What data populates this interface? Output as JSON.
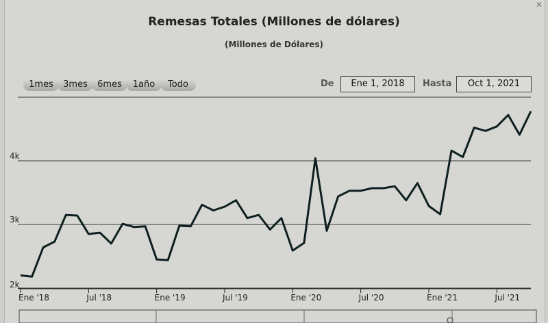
{
  "chart_data": {
    "type": "line",
    "title": "Remesas Totales (Millones de dólares)",
    "subtitle": "(Millones de Dólares)",
    "xlabel": "",
    "ylabel": "",
    "ylim": [
      2000,
      5000
    ],
    "yticks": [
      {
        "value": 2000,
        "label": "2k"
      },
      {
        "value": 3000,
        "label": "3k"
      },
      {
        "value": 4000,
        "label": "4k"
      }
    ],
    "xticks": [
      {
        "value": 0,
        "label": "Ene '18"
      },
      {
        "value": 6,
        "label": "Jul '18"
      },
      {
        "value": 12,
        "label": "Ene '19"
      },
      {
        "value": 18,
        "label": "Jul '19"
      },
      {
        "value": 24,
        "label": "Ene '20"
      },
      {
        "value": 30,
        "label": "Jul '20"
      },
      {
        "value": 36,
        "label": "Ene '21"
      },
      {
        "value": 42,
        "label": "Jul '21"
      }
    ],
    "x_dates": [
      "Jan 2018",
      "Feb 2018",
      "Mar 2018",
      "Apr 2018",
      "May 2018",
      "Jun 2018",
      "Jul 2018",
      "Aug 2018",
      "Sep 2018",
      "Oct 2018",
      "Nov 2018",
      "Dec 2018",
      "Jan 2019",
      "Feb 2019",
      "Mar 2019",
      "Apr 2019",
      "May 2019",
      "Jun 2019",
      "Jul 2019",
      "Aug 2019",
      "Sep 2019",
      "Oct 2019",
      "Nov 2019",
      "Dec 2019",
      "Jan 2020",
      "Feb 2020",
      "Mar 2020",
      "Apr 2020",
      "May 2020",
      "Jun 2020",
      "Jul 2020",
      "Aug 2020",
      "Sep 2020",
      "Oct 2020",
      "Nov 2020",
      "Dec 2020",
      "Jan 2021",
      "Feb 2021",
      "Mar 2021",
      "Apr 2021",
      "May 2021",
      "Jun 2021",
      "Jul 2021",
      "Aug 2021",
      "Sep 2021",
      "Oct 2021"
    ],
    "series": [
      {
        "values": [
          2200,
          2180,
          2640,
          2730,
          3150,
          3140,
          2850,
          2870,
          2700,
          3010,
          2960,
          2970,
          2450,
          2440,
          2980,
          2970,
          3310,
          3220,
          3280,
          3380,
          3100,
          3150,
          2920,
          3100,
          2590,
          2710,
          4040,
          2900,
          3440,
          3530,
          3530,
          3570,
          3570,
          3600,
          3380,
          3650,
          3290,
          3160,
          4160,
          4060,
          4520,
          4470,
          4540,
          4720,
          4410,
          4780
        ]
      }
    ],
    "grid": true
  },
  "range_selector": {
    "buttons": [
      "1mes",
      "3mes",
      "6mes",
      "1año",
      "Todo"
    ],
    "from_label": "De",
    "from_value": "Ene 1, 2018",
    "to_label": "Hasta",
    "to_value": "Oct 1, 2021"
  },
  "colors": {
    "line": "#0d1f1f",
    "grid": "#3a3a3a",
    "background": "#d6d6d2"
  }
}
